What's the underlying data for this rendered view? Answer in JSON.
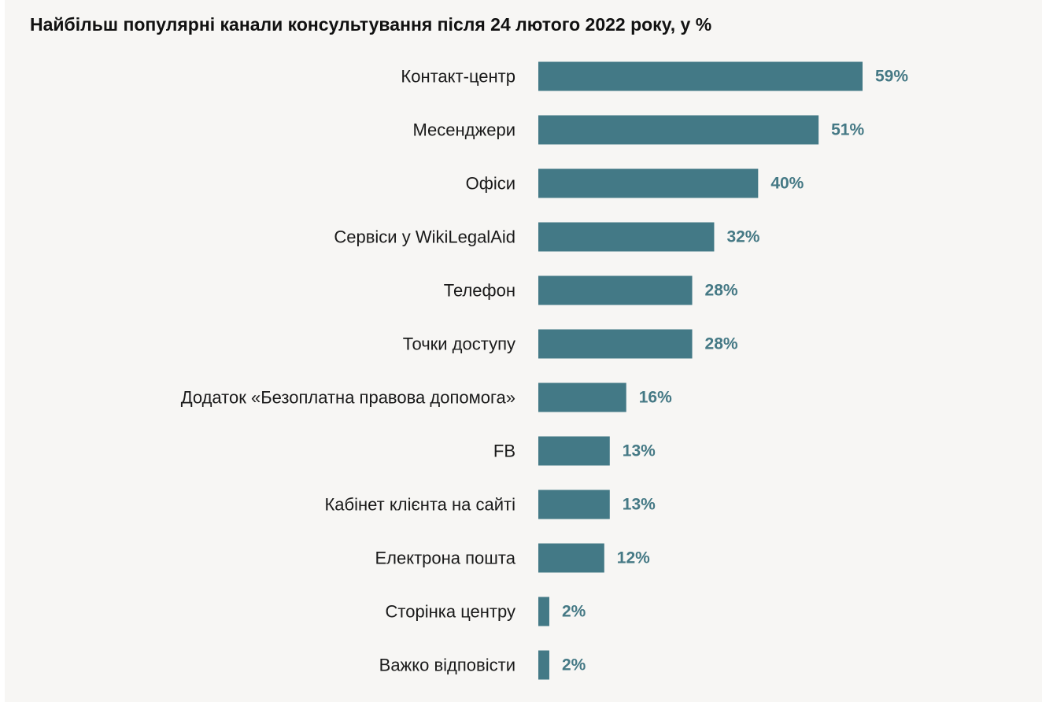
{
  "colors": {
    "background": "#f7f6f4",
    "bar": "#437986",
    "value_label": "#457985",
    "text": "#1a1a1a"
  },
  "chart_data": {
    "type": "bar",
    "orientation": "horizontal",
    "title": "Найбільш популярні канали консультування після 24 лютого 2022 року, у %",
    "xlabel": "",
    "ylabel": "",
    "xlim": [
      0,
      59
    ],
    "grid": false,
    "legend": "none",
    "categories": [
      "Контакт-центр",
      "Месенджери",
      "Офіси",
      "Сервіси у WikiLegalAid",
      "Телефон",
      "Точки доступу",
      "Додаток «Безоплатна правова допомога»",
      "FB",
      "Кабінет клієнта на сайті",
      "Електрона пошта",
      "Сторінка центру",
      "Важко відповісти"
    ],
    "values": [
      59,
      51,
      40,
      32,
      28,
      28,
      16,
      13,
      13,
      12,
      2,
      2
    ],
    "value_labels": [
      "59%",
      "51%",
      "40%",
      "32%",
      "28%",
      "28%",
      "16%",
      "13%",
      "13%",
      "12%",
      "2%",
      "2%"
    ]
  }
}
